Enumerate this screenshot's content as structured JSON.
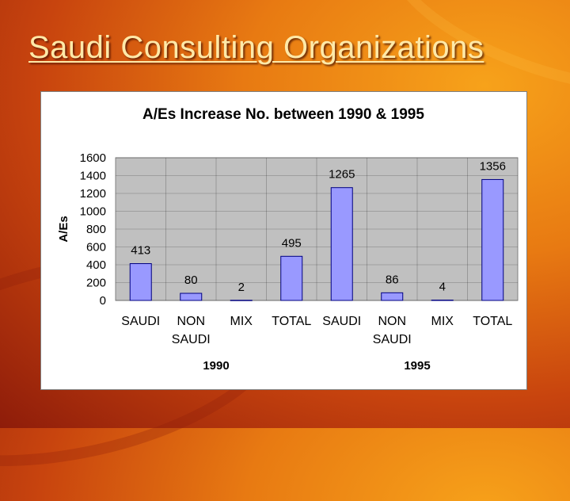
{
  "slide": {
    "title": "Saudi Consulting Organizations"
  },
  "colors": {
    "bar": "#9999ff",
    "bar_stroke": "#000080",
    "plot_bg": "#c0c0c0",
    "title_text": "#ffe9a8"
  },
  "chart_data": {
    "type": "bar",
    "title": "A/Es Increase No. between 1990 & 1995",
    "ylabel": "A/Es",
    "xlabel": "",
    "ylim": [
      0,
      1600
    ],
    "yticks": [
      0,
      200,
      400,
      600,
      800,
      1000,
      1200,
      1400,
      1600
    ],
    "grid": true,
    "legend": "none",
    "categories": [
      "SAUDI",
      "NON SAUDI",
      "MIX",
      "TOTAL",
      "SAUDI",
      "NON SAUDI",
      "MIX",
      "TOTAL"
    ],
    "groups": [
      {
        "label": "1990",
        "from": 0,
        "to": 3
      },
      {
        "label": "1995",
        "from": 4,
        "to": 7
      }
    ],
    "values": [
      413,
      80,
      2,
      495,
      1265,
      86,
      4,
      1356
    ],
    "data_labels": [
      "413",
      "80",
      "2",
      "495",
      "1265",
      "86",
      "4",
      "1356"
    ]
  }
}
